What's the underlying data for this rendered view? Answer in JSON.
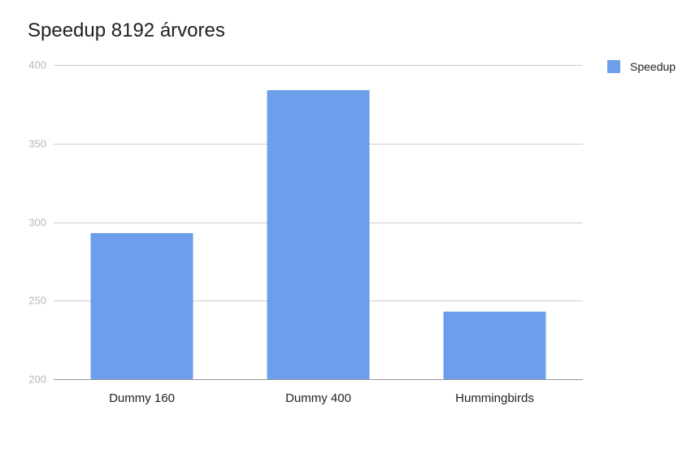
{
  "chart_data": {
    "type": "bar",
    "title": "Speedup 8192 árvores",
    "categories": [
      "Dummy 160",
      "Dummy 400",
      "Hummingbirds"
    ],
    "series": [
      {
        "name": "Speedup",
        "values": [
          293,
          384,
          243
        ],
        "color": "#6d9eeb"
      }
    ],
    "xlabel": "",
    "ylabel": "",
    "ylim": [
      200,
      400
    ],
    "yticks": [
      200,
      250,
      300,
      350,
      400
    ],
    "grid": true,
    "legend_position": "right"
  }
}
